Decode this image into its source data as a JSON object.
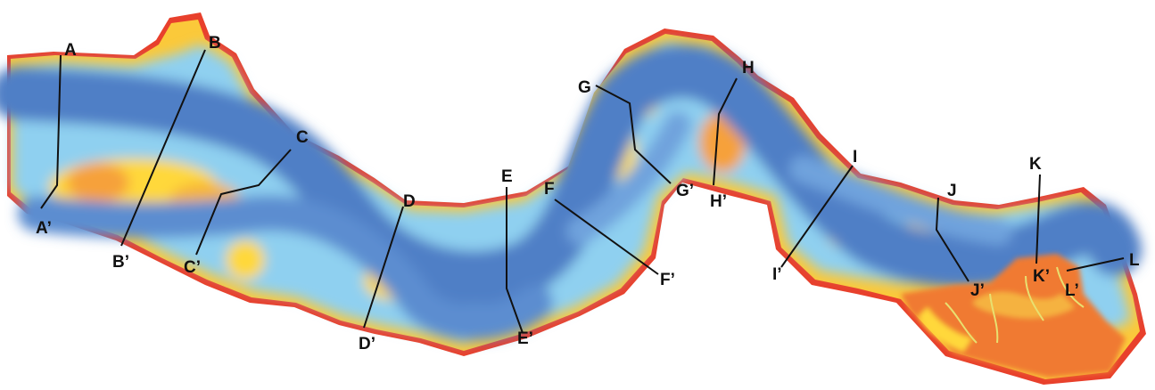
{
  "colors": {
    "background": "#ffffff",
    "deep_channel": "#4f7fc6",
    "mid_depth": "#6fa3dd",
    "shallow": "#8fd0f0",
    "intertidal": "#ffd83a",
    "high_flat": "#f6a13a",
    "marsh_edge": "#e8402c",
    "line": "#111111"
  },
  "cross_sections": [
    {
      "id": "A",
      "start": "A",
      "end": "A’"
    },
    {
      "id": "B",
      "start": "B",
      "end": "B’"
    },
    {
      "id": "C",
      "start": "C",
      "end": "C’"
    },
    {
      "id": "D",
      "start": "D",
      "end": "D’"
    },
    {
      "id": "E",
      "start": "E",
      "end": "E’"
    },
    {
      "id": "F",
      "start": "F",
      "end": "F’"
    },
    {
      "id": "G",
      "start": "G",
      "end": "G’"
    },
    {
      "id": "H",
      "start": "H",
      "end": "H’"
    },
    {
      "id": "I",
      "start": "I",
      "end": "I’"
    },
    {
      "id": "J",
      "start": "J",
      "end": "J’"
    },
    {
      "id": "K",
      "start": "K",
      "end": "K’"
    },
    {
      "id": "L",
      "start": "L",
      "end": "L’"
    }
  ]
}
